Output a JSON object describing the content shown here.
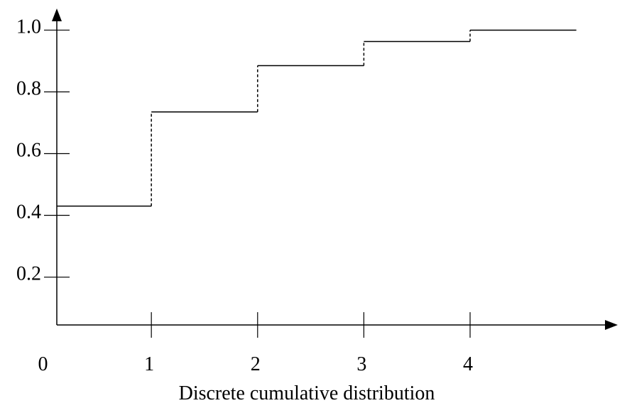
{
  "chart_data": {
    "type": "step",
    "x_label": "Discrete cumulative distribution",
    "x": [
      0,
      1,
      2,
      3,
      4
    ],
    "x_end": 5,
    "values": [
      0.43,
      0.735,
      0.885,
      0.963,
      1.0
    ],
    "color": "#000000",
    "xlim": [
      0.11,
      5.39
    ],
    "xticks": [
      0,
      1,
      2,
      3,
      4
    ],
    "ylim": [
      0.045,
      1.07
    ],
    "yticks": [
      {
        "value": 0.2,
        "label": "0.2"
      },
      {
        "value": 0.4,
        "label": "0.4"
      },
      {
        "value": 0.6,
        "label": "0.6"
      },
      {
        "value": 0.8,
        "label": "0.8"
      },
      {
        "value": 1.0,
        "label": "1.0"
      }
    ]
  }
}
